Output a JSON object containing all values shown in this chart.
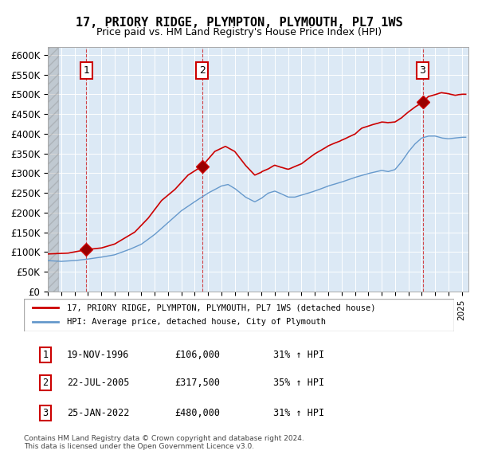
{
  "title": "17, PRIORY RIDGE, PLYMPTON, PLYMOUTH, PL7 1WS",
  "subtitle": "Price paid vs. HM Land Registry's House Price Index (HPI)",
  "xlim": [
    1994.0,
    2025.5
  ],
  "ylim": [
    0,
    620000
  ],
  "yticks": [
    0,
    50000,
    100000,
    150000,
    200000,
    250000,
    300000,
    350000,
    400000,
    450000,
    500000,
    550000,
    600000
  ],
  "ytick_labels": [
    "£0",
    "£50K",
    "£100K",
    "£150K",
    "£200K",
    "£250K",
    "£300K",
    "£350K",
    "£400K",
    "£450K",
    "£500K",
    "£550K",
    "£600K"
  ],
  "sale_dates_num": [
    1996.89,
    2005.55,
    2022.07
  ],
  "sale_prices": [
    106000,
    317500,
    480000
  ],
  "sale_labels": [
    "1",
    "2",
    "3"
  ],
  "vline_dates": [
    1996.89,
    2005.55,
    2022.07
  ],
  "red_line_color": "#cc0000",
  "blue_line_color": "#6699cc",
  "background_color": "#dce9f5",
  "legend_entries": [
    "17, PRIORY RIDGE, PLYMPTON, PLYMOUTH, PL7 1WS (detached house)",
    "HPI: Average price, detached house, City of Plymouth"
  ],
  "table_data": [
    [
      "1",
      "19-NOV-1996",
      "£106,000",
      "31% ↑ HPI"
    ],
    [
      "2",
      "22-JUL-2005",
      "£317,500",
      "35% ↑ HPI"
    ],
    [
      "3",
      "25-JAN-2022",
      "£480,000",
      "31% ↑ HPI"
    ]
  ],
  "footnote": "Contains HM Land Registry data © Crown copyright and database right 2024.\nThis data is licensed under the Open Government Licence v3.0.",
  "hatch_color": "#bbbbbb"
}
